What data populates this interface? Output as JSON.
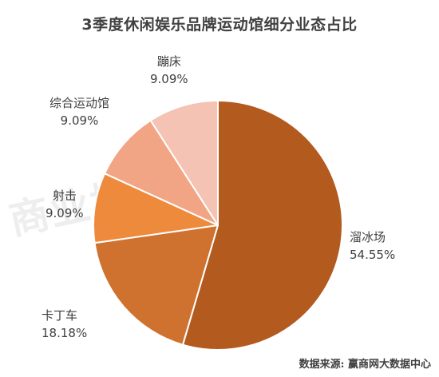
{
  "title": "3季度休闲娱乐品牌运动馆细分业态占比",
  "watermark": "商业地产云智库",
  "source": "数据来源:   赢商网大数据中心",
  "chart_data": {
    "type": "pie",
    "title": "3季度休闲娱乐品牌运动馆细分业态占比",
    "start_angle_deg": 0,
    "direction": "clockwise",
    "slices": [
      {
        "label": "溜冰场",
        "value": 54.55,
        "value_text": "54.55%",
        "color": "#B35A1F"
      },
      {
        "label": "卡丁车",
        "value": 18.18,
        "value_text": "18.18%",
        "color": "#D0722F"
      },
      {
        "label": "射击",
        "value": 9.09,
        "value_text": "9.09%",
        "color": "#EE8A3C"
      },
      {
        "label": "综合运动馆",
        "value": 9.09,
        "value_text": "9.09%",
        "color": "#F2A585"
      },
      {
        "label": "蹦床",
        "value": 9.09,
        "value_text": "9.09%",
        "color": "#F4C3B3"
      }
    ]
  }
}
